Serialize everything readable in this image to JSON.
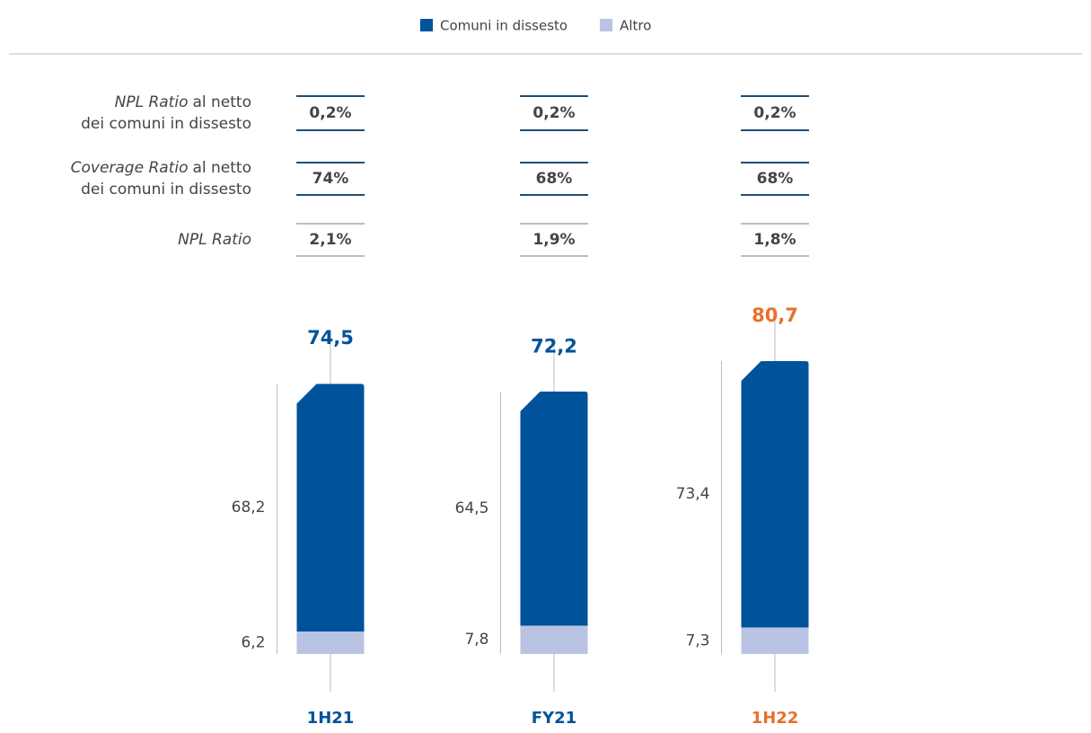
{
  "chart_data": {
    "type": "stacked_bar",
    "categories": [
      "1H21",
      "FY21",
      "1H22"
    ],
    "category_colors": [
      "#00529b",
      "#00529b",
      "#e8702a"
    ],
    "series": [
      {
        "name": "Altro",
        "color": "#b9c3e3",
        "values": [
          6.2,
          7.8,
          7.3
        ],
        "value_labels": [
          "6,2",
          "7,8",
          "7,3"
        ]
      },
      {
        "name": "Comuni in dissesto",
        "color": "#00529b",
        "values": [
          68.2,
          64.5,
          73.4
        ],
        "value_labels": [
          "68,2",
          "64,5",
          "73,4"
        ]
      }
    ],
    "legend_order": [
      1,
      0
    ],
    "totals": [
      74.5,
      72.2,
      80.7
    ],
    "total_labels": [
      "74,5",
      "72,2",
      "80,7"
    ],
    "legend": "top"
  },
  "ratios": [
    {
      "italic": "NPL Ratio",
      "rest": [
        "al netto",
        "dei comuni in dissesto"
      ],
      "values": [
        "0,2%",
        "0,2%",
        "0,2%"
      ],
      "color": "#1f4e79"
    },
    {
      "italic": "Coverage Ratio",
      "rest": [
        "al netto",
        "dei comuni in dissesto"
      ],
      "values": [
        "74%",
        "68%",
        "68%"
      ],
      "color": "#1f4e79"
    },
    {
      "italic": "NPL Ratio",
      "rest": [],
      "values": [
        "2,1%",
        "1,9%",
        "1,8%"
      ],
      "color": "#bdbdbd"
    }
  ]
}
